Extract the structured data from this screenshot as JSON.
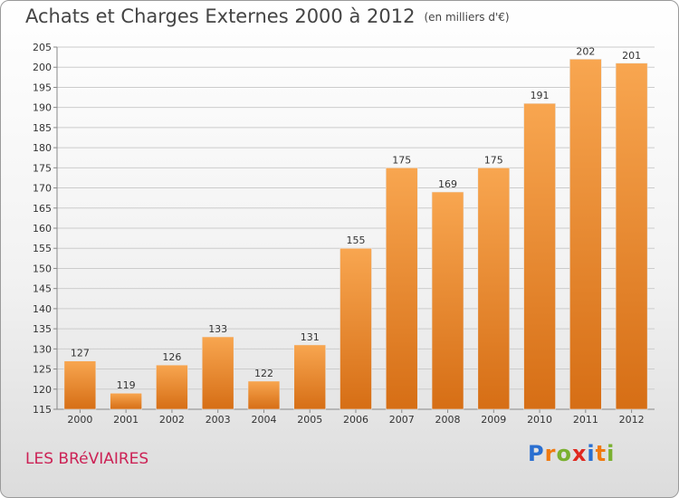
{
  "title": "Achats et Charges Externes 2000 à 2012",
  "unit": "(en milliers d'€)",
  "commune": "LES BRéVIAIRES",
  "logo": {
    "letters": [
      "P",
      "r",
      "o",
      "x",
      "i",
      "t",
      "i"
    ],
    "colors": [
      "#2a6fd0",
      "#f07a10",
      "#7ab030",
      "#e0281f",
      "#2a6fd0",
      "#f07a10",
      "#7ab030"
    ]
  },
  "colors": {
    "bar": "#f0922a",
    "bar_light": "#f8b060",
    "bar_dark": "#d9721a",
    "grid": "#cccccc",
    "commune": "#cc2255"
  },
  "chart_data": {
    "type": "bar",
    "categories": [
      "2000",
      "2001",
      "2002",
      "2003",
      "2004",
      "2005",
      "2006",
      "2007",
      "2008",
      "2009",
      "2010",
      "2011",
      "2012"
    ],
    "values": [
      127,
      119,
      126,
      133,
      122,
      131,
      155,
      175,
      169,
      175,
      191,
      202,
      201
    ],
    "ylim": [
      115,
      205
    ],
    "yticks": [
      115,
      120,
      125,
      130,
      135,
      140,
      145,
      150,
      155,
      160,
      165,
      170,
      175,
      180,
      185,
      190,
      195,
      200,
      205
    ],
    "grid": "horizontal",
    "data_labels": true
  }
}
